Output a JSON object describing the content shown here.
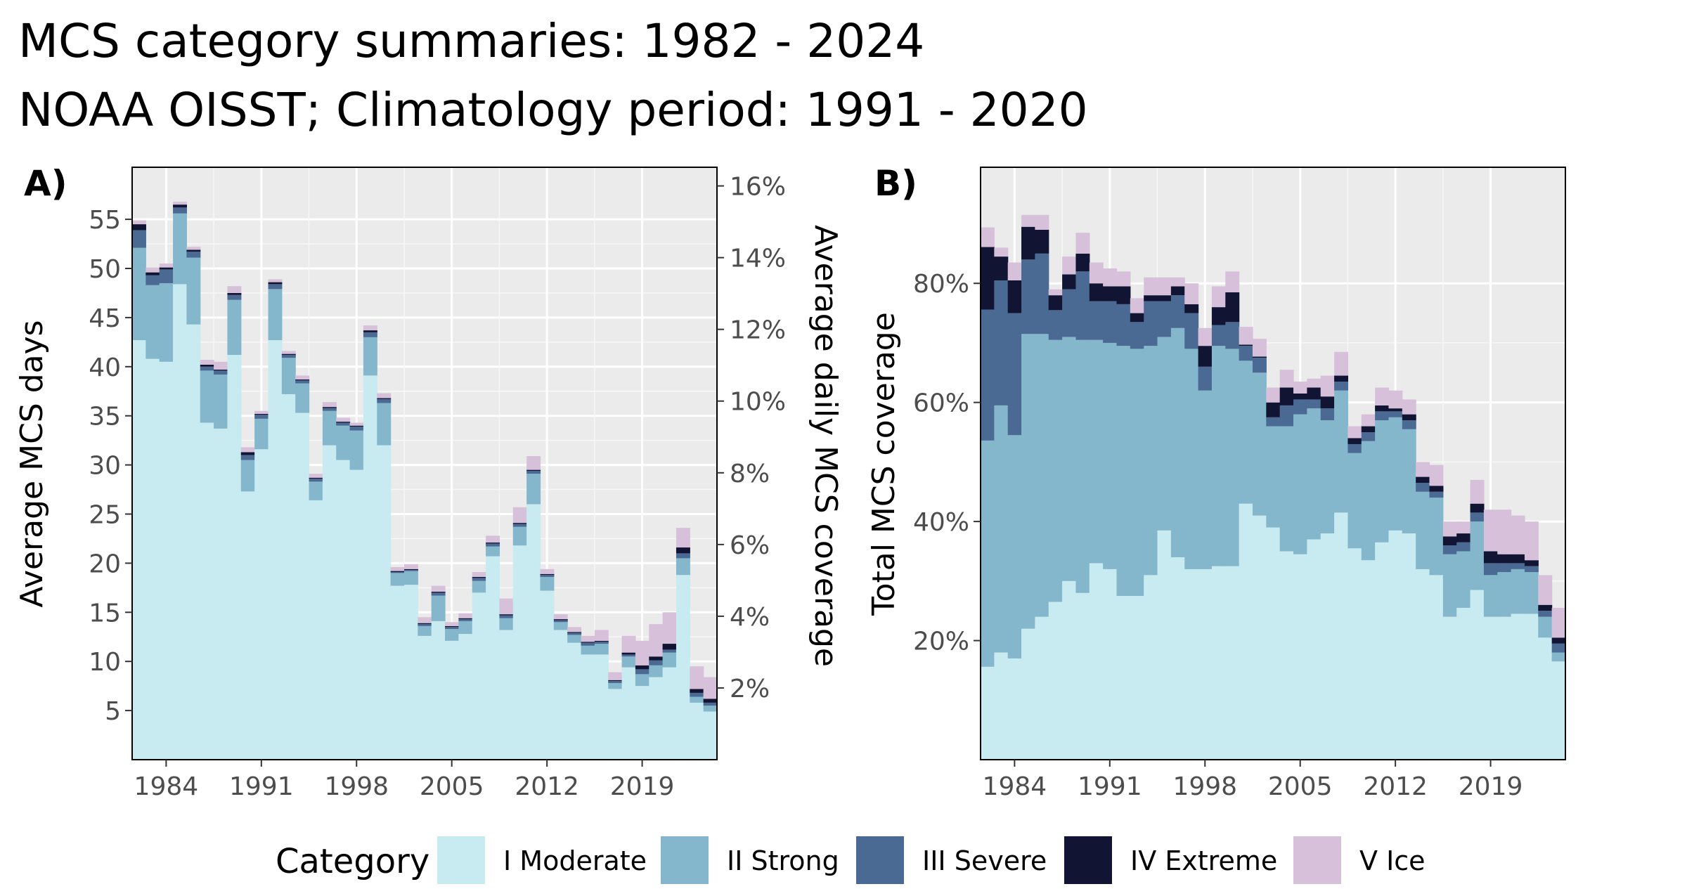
{
  "header": {
    "title": "MCS category summaries: 1982 - 2024",
    "subtitle": "NOAA OISST; Climatology period: 1991 - 2020"
  },
  "legend": {
    "title": "Category",
    "position": "bottom"
  },
  "categories": [
    {
      "name": "I Moderate",
      "color": "#C7EBF0"
    },
    {
      "name": "II Strong",
      "color": "#85B7CC"
    },
    {
      "name": "III Severe",
      "color": "#4A6A94"
    },
    {
      "name": "IV Extreme",
      "color": "#111433"
    },
    {
      "name": "V Ice",
      "color": "#D7C1DA"
    }
  ],
  "chart_data": [
    {
      "panel": "A)",
      "type": "bar",
      "stacked": true,
      "x": [
        1982,
        1983,
        1984,
        1985,
        1986,
        1987,
        1988,
        1989,
        1990,
        1991,
        1992,
        1993,
        1994,
        1995,
        1996,
        1997,
        1998,
        1999,
        2000,
        2001,
        2002,
        2003,
        2004,
        2005,
        2006,
        2007,
        2008,
        2009,
        2010,
        2011,
        2012,
        2013,
        2014,
        2015,
        2016,
        2017,
        2018,
        2019,
        2020,
        2021,
        2022,
        2023,
        2024
      ],
      "xticks": [
        1984,
        1991,
        1998,
        2005,
        2012,
        2019
      ],
      "xlim": [
        1981.5,
        2024.5
      ],
      "ylabel": "Average MCS days",
      "ylim": [
        0,
        60.3
      ],
      "yticks": [
        5,
        10,
        15,
        20,
        25,
        30,
        35,
        40,
        45,
        50,
        55
      ],
      "y2label": "Average daily MCS coverage",
      "y2ticks": [
        "2%",
        "4%",
        "6%",
        "8%",
        "10%",
        "12%",
        "14%",
        "16%"
      ],
      "y2_scale_days_per_percent": 3.65,
      "grid": true,
      "series": [
        {
          "name": "I Moderate",
          "values": [
            42.7,
            40.8,
            40.5,
            48.4,
            44.3,
            34.3,
            33.7,
            41.2,
            27.3,
            31.6,
            42.7,
            37.2,
            35.3,
            26.4,
            32.0,
            30.5,
            29.5,
            39.1,
            32.0,
            17.7,
            17.8,
            12.6,
            14.1,
            12.1,
            12.8,
            17.0,
            20.7,
            13.2,
            21.8,
            26.0,
            17.2,
            13.2,
            11.9,
            10.7,
            10.7,
            7.2,
            9.4,
            7.5,
            8.4,
            9.4,
            18.8,
            5.8,
            4.9
          ]
        },
        {
          "name": "II Strong",
          "values": [
            9.4,
            7.5,
            8.0,
            7.2,
            6.8,
            5.3,
            5.5,
            5.6,
            3.2,
            3.1,
            5.2,
            3.7,
            3.0,
            1.9,
            3.5,
            3.5,
            4.0,
            3.9,
            4.3,
            1.3,
            1.4,
            1.0,
            2.6,
            1.2,
            1.3,
            1.2,
            1.0,
            1.2,
            1.9,
            3.1,
            1.4,
            0.8,
            0.8,
            0.9,
            1.1,
            0.6,
            1.1,
            1.2,
            1.2,
            1.5,
            1.7,
            0.6,
            0.6
          ]
        },
        {
          "name": "III Severe",
          "values": [
            1.8,
            1.0,
            1.4,
            0.6,
            0.6,
            0.4,
            0.4,
            0.5,
            0.5,
            0.4,
            0.5,
            0.3,
            0.3,
            0.3,
            0.3,
            0.3,
            0.4,
            0.5,
            0.4,
            0.1,
            0.1,
            0.2,
            0.3,
            0.2,
            0.2,
            0.3,
            0.3,
            0.3,
            0.3,
            0.3,
            0.2,
            0.2,
            0.2,
            0.3,
            0.2,
            0.2,
            0.2,
            0.5,
            0.5,
            0.3,
            0.5,
            0.4,
            0.3
          ]
        },
        {
          "name": "IV Extreme",
          "values": [
            0.6,
            0.3,
            0.2,
            0.3,
            0.2,
            0.2,
            0.1,
            0.2,
            0.3,
            0.1,
            0.2,
            0.1,
            0.1,
            0.1,
            0.1,
            0.1,
            0.1,
            0.2,
            0.1,
            0.1,
            0.1,
            0.1,
            0.1,
            0.1,
            0.1,
            0.1,
            0.1,
            0.1,
            0.1,
            0.1,
            0.1,
            0.1,
            0.1,
            0.1,
            0.1,
            0.1,
            0.2,
            0.4,
            0.4,
            0.6,
            0.6,
            0.4,
            0.4
          ]
        },
        {
          "name": "V Ice",
          "values": [
            0.4,
            0.5,
            0.4,
            0.3,
            0.3,
            0.5,
            0.8,
            0.7,
            0.5,
            0.3,
            0.3,
            0.3,
            0.4,
            0.4,
            0.5,
            0.4,
            0.3,
            0.5,
            0.5,
            0.4,
            0.5,
            0.6,
            0.6,
            0.4,
            0.5,
            0.5,
            0.7,
            1.6,
            1.6,
            1.4,
            0.5,
            0.5,
            0.5,
            0.6,
            1.1,
            0.8,
            1.7,
            2.5,
            3.3,
            3.2,
            2.0,
            2.3,
            2.2
          ]
        }
      ]
    },
    {
      "panel": "B)",
      "type": "bar",
      "stacked": true,
      "x": [
        1982,
        1983,
        1984,
        1985,
        1986,
        1987,
        1988,
        1989,
        1990,
        1991,
        1992,
        1993,
        1994,
        1995,
        1996,
        1997,
        1998,
        1999,
        2000,
        2001,
        2002,
        2003,
        2004,
        2005,
        2006,
        2007,
        2008,
        2009,
        2010,
        2011,
        2012,
        2013,
        2014,
        2015,
        2016,
        2017,
        2018,
        2019,
        2020,
        2021,
        2022,
        2023,
        2024
      ],
      "xticks": [
        1984,
        1991,
        1998,
        2005,
        2012,
        2019
      ],
      "xlim": [
        1981.5,
        2024.5
      ],
      "ylabel": "Total MCS coverage",
      "ylim": [
        0,
        99.5
      ],
      "yticks": [
        "20%",
        "40%",
        "60%",
        "80%"
      ],
      "ytick_values": [
        20,
        40,
        60,
        80
      ],
      "grid": true,
      "series": [
        {
          "name": "I Moderate",
          "values": [
            15.6,
            18.0,
            17.0,
            22.0,
            24.0,
            26.5,
            30.0,
            28.0,
            33.0,
            32.0,
            27.5,
            27.5,
            31.0,
            38.5,
            34.0,
            32.0,
            32.0,
            32.5,
            32.5,
            43.0,
            41.0,
            39.0,
            35.0,
            34.5,
            37.0,
            38.0,
            41.5,
            35.5,
            33.5,
            36.5,
            38.5,
            38.0,
            32.0,
            31.0,
            24.0,
            25.5,
            28.5,
            24.0,
            24.0,
            24.5,
            24.5,
            20.5,
            16.5
          ]
        },
        {
          "name": "II Strong",
          "values": [
            38.0,
            41.5,
            37.5,
            49.5,
            47.5,
            44.0,
            41.0,
            42.5,
            37.5,
            38.0,
            42.0,
            41.5,
            38.5,
            32.5,
            38.5,
            37.0,
            30.0,
            37.0,
            36.5,
            24.0,
            24.0,
            17.0,
            21.0,
            23.5,
            22.0,
            19.0,
            20.5,
            16.0,
            20.0,
            20.5,
            19.0,
            17.5,
            13.0,
            13.0,
            10.5,
            9.5,
            11.5,
            7.0,
            7.5,
            7.5,
            7.0,
            3.5,
            1.5
          ]
        },
        {
          "name": "III Severe",
          "values": [
            22.0,
            21.0,
            20.5,
            12.5,
            13.5,
            5.0,
            8.0,
            11.5,
            6.5,
            7.0,
            7.0,
            4.5,
            7.5,
            6.0,
            5.5,
            6.0,
            4.0,
            3.5,
            4.5,
            2.5,
            2.5,
            1.5,
            3.5,
            2.5,
            1.5,
            2.0,
            1.5,
            1.5,
            1.5,
            1.5,
            1.0,
            1.5,
            1.5,
            1.0,
            1.5,
            1.5,
            1.5,
            2.0,
            1.5,
            1.0,
            1.0,
            1.0,
            1.5
          ]
        },
        {
          "name": "IV Extreme",
          "values": [
            10.5,
            4.0,
            5.5,
            5.5,
            4.0,
            2.5,
            2.5,
            3.0,
            3.0,
            2.5,
            3.0,
            1.5,
            1.0,
            1.0,
            1.5,
            1.5,
            3.5,
            3.0,
            5.0,
            0.2,
            0.2,
            2.5,
            3.0,
            1.0,
            2.0,
            2.0,
            1.0,
            1.0,
            1.0,
            1.0,
            0.5,
            1.0,
            1.0,
            1.0,
            1.5,
            1.5,
            1.5,
            2.0,
            1.5,
            1.5,
            1.0,
            1.0,
            1.0
          ]
        },
        {
          "name": "V Ice",
          "values": [
            3.3,
            1.5,
            3.0,
            2.0,
            2.5,
            1.0,
            3.0,
            3.5,
            3.5,
            3.0,
            2.5,
            2.5,
            3.0,
            3.0,
            1.5,
            3.5,
            3.0,
            3.5,
            3.5,
            3.0,
            3.0,
            2.5,
            3.0,
            2.0,
            1.5,
            3.5,
            4.0,
            2.0,
            2.0,
            3.0,
            3.0,
            2.5,
            2.5,
            3.5,
            2.5,
            2.0,
            4.0,
            7.0,
            7.5,
            6.5,
            6.5,
            5.0,
            5.0
          ]
        }
      ]
    }
  ]
}
